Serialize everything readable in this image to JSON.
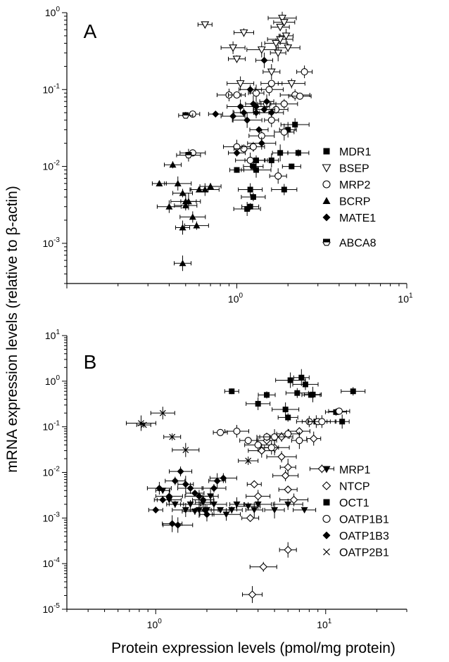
{
  "figure": {
    "y_axis_label": "mRNA expression levels  (relative to β-actin)",
    "x_axis_label": "Protein expression levels  (pmol/mg protein)"
  },
  "chart_data": [
    {
      "panel": "A",
      "type": "scatter",
      "x_scale": "log",
      "y_scale": "log",
      "xlim": [
        0.1,
        10
      ],
      "ylim": [
        0.0003,
        1
      ],
      "x_ticks": [
        {
          "value": 1,
          "label": "10",
          "exp": "0"
        },
        {
          "value": 10,
          "label": "10",
          "exp": "1"
        }
      ],
      "y_ticks": [
        {
          "value": 0.001,
          "label": "10",
          "exp": "-3"
        },
        {
          "value": 0.01,
          "label": "10",
          "exp": "-2"
        },
        {
          "value": 0.1,
          "label": "10",
          "exp": "-1"
        },
        {
          "value": 1,
          "label": "10",
          "exp": "0"
        }
      ],
      "series": [
        {
          "name": "MDR1",
          "marker": "square-filled",
          "points": [
            [
              1.0,
              0.009
            ],
            [
              1.2,
              0.005
            ],
            [
              1.2,
              0.003
            ],
            [
              1.15,
              0.0028
            ],
            [
              1.25,
              0.01
            ],
            [
              1.3,
              0.009
            ],
            [
              1.3,
              0.012
            ],
            [
              1.8,
              0.015
            ],
            [
              1.9,
              0.005
            ],
            [
              2.1,
              0.01
            ],
            [
              2.2,
              0.035
            ],
            [
              2.3,
              0.015
            ],
            [
              1.6,
              0.012
            ],
            [
              1.25,
              0.004
            ],
            [
              2.0,
              0.03
            ]
          ]
        },
        {
          "name": "BSEP",
          "marker": "triangle-down-open",
          "points": [
            [
              0.65,
              0.7
            ],
            [
              0.95,
              0.35
            ],
            [
              1.0,
              0.25
            ],
            [
              1.05,
              0.12
            ],
            [
              1.1,
              0.55
            ],
            [
              1.4,
              0.33
            ],
            [
              1.7,
              0.4
            ],
            [
              1.75,
              0.3
            ],
            [
              1.8,
              0.45
            ],
            [
              1.8,
              0.65
            ],
            [
              1.85,
              0.85
            ],
            [
              1.9,
              0.75
            ],
            [
              1.95,
              0.5
            ],
            [
              2.0,
              0.35
            ],
            [
              1.6,
              0.17
            ],
            [
              2.1,
              0.12
            ]
          ]
        },
        {
          "name": "MRP2",
          "marker": "circle-open",
          "points": [
            [
              0.55,
              0.048
            ],
            [
              0.9,
              0.085
            ],
            [
              1.0,
              0.085
            ],
            [
              1.0,
              0.018
            ],
            [
              1.1,
              0.017
            ],
            [
              1.2,
              0.012
            ],
            [
              1.25,
              0.018
            ],
            [
              1.3,
              0.09
            ],
            [
              1.4,
              0.025
            ],
            [
              1.5,
              0.065
            ],
            [
              1.55,
              0.1
            ],
            [
              1.6,
              0.12
            ],
            [
              1.6,
              0.04
            ],
            [
              1.7,
              0.055
            ],
            [
              1.75,
              0.0075
            ],
            [
              1.9,
              0.065
            ],
            [
              1.9,
              0.028
            ],
            [
              2.2,
              0.085
            ],
            [
              2.35,
              0.082
            ],
            [
              2.5,
              0.17
            ],
            [
              0.55,
              0.015
            ]
          ]
        },
        {
          "name": "BCRP",
          "marker": "triangle-up-filled",
          "points": [
            [
              0.35,
              0.006
            ],
            [
              0.4,
              0.003
            ],
            [
              0.42,
              0.0105
            ],
            [
              0.45,
              0.006
            ],
            [
              0.48,
              0.0045
            ],
            [
              0.5,
              0.0035
            ],
            [
              0.5,
              0.0031
            ],
            [
              0.52,
              0.0035
            ],
            [
              0.55,
              0.0022
            ],
            [
              0.6,
              0.005
            ],
            [
              0.65,
              0.005
            ],
            [
              0.7,
              0.0055
            ],
            [
              0.48,
              0.0016
            ],
            [
              0.58,
              0.0017
            ],
            [
              0.48,
              0.00055
            ]
          ]
        },
        {
          "name": "MATE1",
          "marker": "diamond-filled",
          "points": [
            [
              0.75,
              0.048
            ],
            [
              0.95,
              0.045
            ],
            [
              1.0,
              0.015
            ],
            [
              1.05,
              0.06
            ],
            [
              1.1,
              0.05
            ],
            [
              1.15,
              0.04
            ],
            [
              1.2,
              0.1
            ],
            [
              1.25,
              0.065
            ],
            [
              1.3,
              0.05
            ],
            [
              1.35,
              0.03
            ],
            [
              1.4,
              0.02
            ],
            [
              1.45,
              0.055
            ],
            [
              1.5,
              0.07
            ],
            [
              1.6,
              0.05
            ],
            [
              1.45,
              0.24
            ],
            [
              1.3,
              0.06
            ]
          ]
        },
        {
          "name": "ABCA8",
          "marker": "hexagon-half",
          "points": [
            [
              0.5,
              0.046
            ],
            [
              0.52,
              0.014
            ]
          ]
        }
      ],
      "legend": {
        "placement": "right",
        "entries": [
          "MDR1",
          "BSEP",
          "MRP2",
          "BCRP",
          "MATE1",
          "ABCA8"
        ]
      }
    },
    {
      "panel": "B",
      "type": "scatter",
      "x_scale": "log",
      "y_scale": "log",
      "xlim": [
        0.3,
        30
      ],
      "ylim": [
        1e-05,
        10
      ],
      "x_ticks": [
        {
          "value": 1,
          "label": "10",
          "exp": "0"
        },
        {
          "value": 10,
          "label": "10",
          "exp": "1"
        }
      ],
      "y_ticks": [
        {
          "value": 1e-05,
          "label": "10",
          "exp": "-5"
        },
        {
          "value": 0.0001,
          "label": "10",
          "exp": "-4"
        },
        {
          "value": 0.001,
          "label": "10",
          "exp": "-3"
        },
        {
          "value": 0.01,
          "label": "10",
          "exp": "-2"
        },
        {
          "value": 0.1,
          "label": "10",
          "exp": "-1"
        },
        {
          "value": 1,
          "label": "10",
          "exp": "0"
        },
        {
          "value": 10,
          "label": "10",
          "exp": "1"
        }
      ],
      "series": [
        {
          "name": "MRP1",
          "marker": "triangle-down-filled",
          "points": [
            [
              1.1,
              0.004
            ],
            [
              1.2,
              0.0025
            ],
            [
              1.3,
              0.002
            ],
            [
              1.5,
              0.0015
            ],
            [
              1.6,
              0.002
            ],
            [
              1.8,
              0.0015
            ],
            [
              2.0,
              0.0015
            ],
            [
              2.1,
              0.003
            ],
            [
              2.2,
              0.002
            ],
            [
              2.4,
              0.0015
            ],
            [
              2.6,
              0.0012
            ],
            [
              2.8,
              0.0015
            ],
            [
              3.0,
              0.002
            ],
            [
              3.5,
              0.0018
            ],
            [
              3.8,
              0.0015
            ],
            [
              4.0,
              0.002
            ],
            [
              5.0,
              0.0015
            ],
            [
              6.0,
              0.002
            ],
            [
              7.5,
              0.0015
            ],
            [
              1.9,
              0.0022
            ],
            [
              1.7,
              0.0014
            ]
          ]
        },
        {
          "name": "NTCP",
          "marker": "diamond-open",
          "points": [
            [
              3.8,
              0.0055
            ],
            [
              4.0,
              0.003
            ],
            [
              3.6,
              0.001
            ],
            [
              4.2,
              0.03
            ],
            [
              4.5,
              0.05
            ],
            [
              5.0,
              0.035
            ],
            [
              5.5,
              0.06
            ],
            [
              6.0,
              0.013
            ],
            [
              5.8,
              0.0085
            ],
            [
              6.0,
              0.0042
            ],
            [
              6.5,
              0.0025
            ],
            [
              7.0,
              0.08
            ],
            [
              8.5,
              0.055
            ],
            [
              9.5,
              0.012
            ],
            [
              6.0,
              0.0002
            ],
            [
              4.3,
              8.5e-05
            ],
            [
              3.7,
              2.1e-05
            ],
            [
              5.5,
              0.022
            ]
          ]
        },
        {
          "name": "OCT1",
          "marker": "square-filled",
          "points": [
            [
              2.8,
              0.6
            ],
            [
              4.0,
              0.32
            ],
            [
              4.5,
              0.5
            ],
            [
              5.8,
              0.24
            ],
            [
              6.0,
              0.16
            ],
            [
              6.2,
              1.05
            ],
            [
              6.8,
              0.55
            ],
            [
              7.2,
              1.2
            ],
            [
              7.6,
              0.85
            ],
            [
              8.2,
              0.5
            ],
            [
              8.8,
              0.13
            ],
            [
              11.5,
              0.21
            ],
            [
              12.5,
              0.13
            ],
            [
              14.5,
              0.6
            ],
            [
              8.4,
              0.51
            ]
          ]
        },
        {
          "name": "OATP1B1",
          "marker": "circle-open",
          "points": [
            [
              2.4,
              0.075
            ],
            [
              3.0,
              0.08
            ],
            [
              3.5,
              0.05
            ],
            [
              4.0,
              0.04
            ],
            [
              4.5,
              0.06
            ],
            [
              5.0,
              0.06
            ],
            [
              6.0,
              0.07
            ],
            [
              7.0,
              0.05
            ],
            [
              8.0,
              0.13
            ],
            [
              9.0,
              0.13
            ],
            [
              9.5,
              0.13
            ],
            [
              12.0,
              0.22
            ],
            [
              4.8,
              0.035
            ]
          ]
        },
        {
          "name": "OATP1B3",
          "marker": "diamond-filled",
          "points": [
            [
              1.0,
              0.0015
            ],
            [
              1.05,
              0.0045
            ],
            [
              1.1,
              0.0025
            ],
            [
              1.2,
              0.003
            ],
            [
              1.3,
              0.0065
            ],
            [
              1.35,
              0.0007
            ],
            [
              1.4,
              0.0105
            ],
            [
              1.5,
              0.0055
            ],
            [
              1.6,
              0.0045
            ],
            [
              1.7,
              0.0035
            ],
            [
              1.8,
              0.003
            ],
            [
              1.9,
              0.0025
            ],
            [
              2.0,
              0.0012
            ],
            [
              2.2,
              0.0045
            ],
            [
              2.3,
              0.0065
            ],
            [
              2.5,
              0.0075
            ],
            [
              1.25,
              0.00075
            ],
            [
              1.95,
              0.0015
            ]
          ]
        },
        {
          "name": "OATP2B1",
          "marker": "cross",
          "points": [
            [
              0.85,
              0.11
            ],
            [
              1.1,
              0.2
            ],
            [
              1.25,
              0.06
            ],
            [
              1.5,
              0.031
            ],
            [
              3.5,
              0.018
            ],
            [
              0.82,
              0.12
            ]
          ]
        }
      ],
      "legend": {
        "placement": "bottom-right",
        "entries": [
          "MRP1",
          "NTCP",
          "OCT1",
          "OATP1B1",
          "OATP1B3",
          "OATP2B1"
        ]
      }
    }
  ]
}
